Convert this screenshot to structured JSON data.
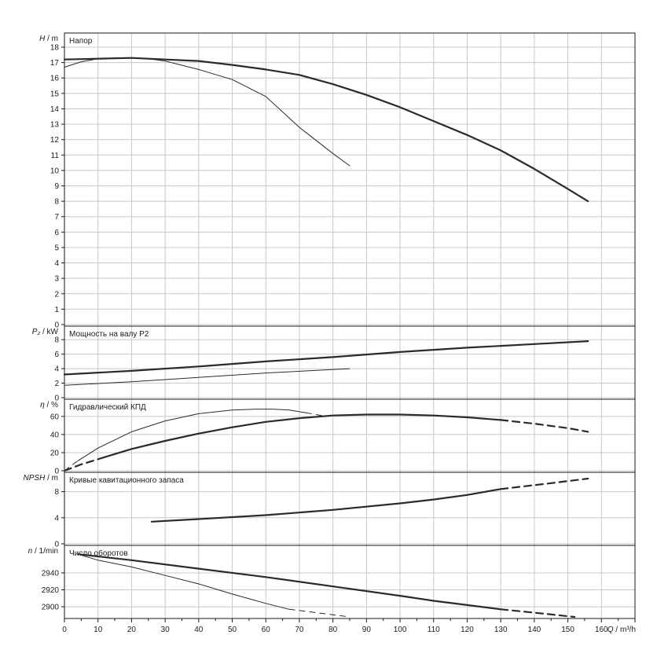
{
  "chart_data": {
    "type": "line",
    "x_axis": {
      "label_var": "Q",
      "label_unit": "m³/h",
      "ticks": [
        "0",
        "10",
        "20",
        "30",
        "40",
        "50",
        "60",
        "70",
        "80",
        "90",
        "100",
        "110",
        "120",
        "130",
        "140",
        "150",
        "160"
      ],
      "range": [
        0,
        170
      ]
    },
    "colors": {
      "curve": "#2a2a2a",
      "grid": "#c8c8c8",
      "frame": "#1a1a1a"
    },
    "panels": [
      {
        "id": "head",
        "title": "Напор",
        "ylabel_var": "H",
        "ylabel_unit": "m",
        "ylim": [
          0,
          18
        ],
        "yticks": [
          "0",
          "1",
          "2",
          "3",
          "4",
          "5",
          "6",
          "7",
          "8",
          "9",
          "10",
          "11",
          "12",
          "13",
          "14",
          "15",
          "16",
          "17",
          "18"
        ],
        "series": [
          {
            "style": "thick",
            "x": [
              0,
              10,
              20,
              30,
              40,
              50,
              60,
              70,
              80,
              90,
              100,
              110,
              120,
              130,
              140,
              150,
              156
            ],
            "y": [
              17.2,
              17.25,
              17.3,
              17.2,
              17.1,
              16.85,
              16.55,
              16.2,
              15.6,
              14.9,
              14.1,
              13.2,
              12.3,
              11.3,
              10.1,
              8.8,
              8
            ]
          },
          {
            "style": "thin",
            "x": [
              0,
              5,
              10,
              15,
              20,
              25,
              30,
              40,
              50,
              60,
              70,
              80,
              85
            ],
            "y": [
              16.7,
              17.05,
              17.25,
              17.3,
              17.3,
              17.25,
              17.1,
              16.55,
              15.9,
              14.8,
              12.8,
              11.1,
              10.3
            ]
          }
        ]
      },
      {
        "id": "power",
        "title": "Мощность на валу P2",
        "ylabel_var": "P₂",
        "ylabel_unit": "kW",
        "ylim": [
          0,
          9
        ],
        "yticks": [
          "0",
          "2",
          "4",
          "6",
          "8"
        ],
        "series": [
          {
            "style": "thick",
            "x": [
              0,
              20,
              40,
              60,
              80,
              100,
              120,
              140,
              156
            ],
            "y": [
              3.2,
              3.7,
              4.3,
              5,
              5.6,
              6.3,
              6.9,
              7.4,
              7.8
            ]
          },
          {
            "style": "thin",
            "x": [
              0,
              20,
              40,
              60,
              85
            ],
            "y": [
              1.7,
              2.2,
              2.8,
              3.4,
              4
            ]
          }
        ]
      },
      {
        "id": "efficiency",
        "title": "Гидравлический КПД",
        "ylabel_var": "η",
        "ylabel_unit": "%",
        "ylim": [
          0,
          72
        ],
        "yticks": [
          "0",
          "20",
          "40",
          "60"
        ],
        "series": [
          {
            "style": "thick",
            "x": [
              12,
              20,
              30,
              40,
              50,
              60,
              70,
              80,
              90,
              100,
              110,
              120,
              130
            ],
            "y": [
              15,
              24,
              33,
              41,
              48,
              54,
              58,
              61,
              62,
              62,
              61,
              59,
              56
            ]
          },
          {
            "style": "thick-dash",
            "x": [
              0,
              5,
              12
            ],
            "y": [
              0,
              7,
              15
            ]
          },
          {
            "style": "thick-dash",
            "x": [
              130,
              140,
              150,
              156
            ],
            "y": [
              56,
              52,
              47,
              43
            ]
          },
          {
            "style": "thin",
            "x": [
              4,
              10,
              20,
              30,
              40,
              50,
              57,
              62,
              67,
              72
            ],
            "y": [
              11,
              25,
              43,
              55,
              63,
              67,
              68,
              68,
              67,
              64
            ]
          },
          {
            "style": "thin-dash",
            "x": [
              0,
              4
            ],
            "y": [
              0,
              11
            ]
          },
          {
            "style": "thin-dash",
            "x": [
              72,
              78
            ],
            "y": [
              64,
              60
            ]
          }
        ]
      },
      {
        "id": "npsh",
        "title": "Кривые кавитационного запаса",
        "ylabel_var": "NPSH",
        "ylabel_unit": "m",
        "ylim": [
          0,
          10
        ],
        "yticks": [
          "0",
          "4",
          "8"
        ],
        "series": [
          {
            "style": "thick",
            "x": [
              26,
              40,
              60,
              80,
              100,
              110,
              120,
              130
            ],
            "y": [
              3.4,
              3.8,
              4.4,
              5.2,
              6.2,
              6.8,
              7.5,
              8.4
            ]
          },
          {
            "style": "thick-dash",
            "x": [
              130,
              145,
              156
            ],
            "y": [
              8.4,
              9.3,
              10
            ]
          }
        ]
      },
      {
        "id": "speed",
        "title": "Число оборотов",
        "ylabel_var": "n",
        "ylabel_unit": "1/min",
        "ylim": [
          2888,
          2965
        ],
        "yticks": [
          "2900",
          "2920",
          "2940"
        ],
        "series": [
          {
            "style": "thick",
            "x": [
              4,
              20,
              40,
              60,
              80,
              100,
              110,
              120,
              130
            ],
            "y": [
              2962,
              2955,
              2945,
              2935,
              2924,
              2913,
              2907,
              2902,
              2897
            ]
          },
          {
            "style": "thick-dash",
            "x": [
              130,
              140,
              152
            ],
            "y": [
              2897,
              2893,
              2888
            ]
          },
          {
            "style": "thin",
            "x": [
              4,
              10,
              20,
              30,
              40,
              50,
              60,
              67
            ],
            "y": [
              2962,
              2955,
              2947,
              2937,
              2927,
              2915,
              2904,
              2897
            ]
          },
          {
            "style": "thin-dash",
            "x": [
              67,
              75,
              85
            ],
            "y": [
              2897,
              2893,
              2888
            ]
          }
        ]
      }
    ]
  }
}
